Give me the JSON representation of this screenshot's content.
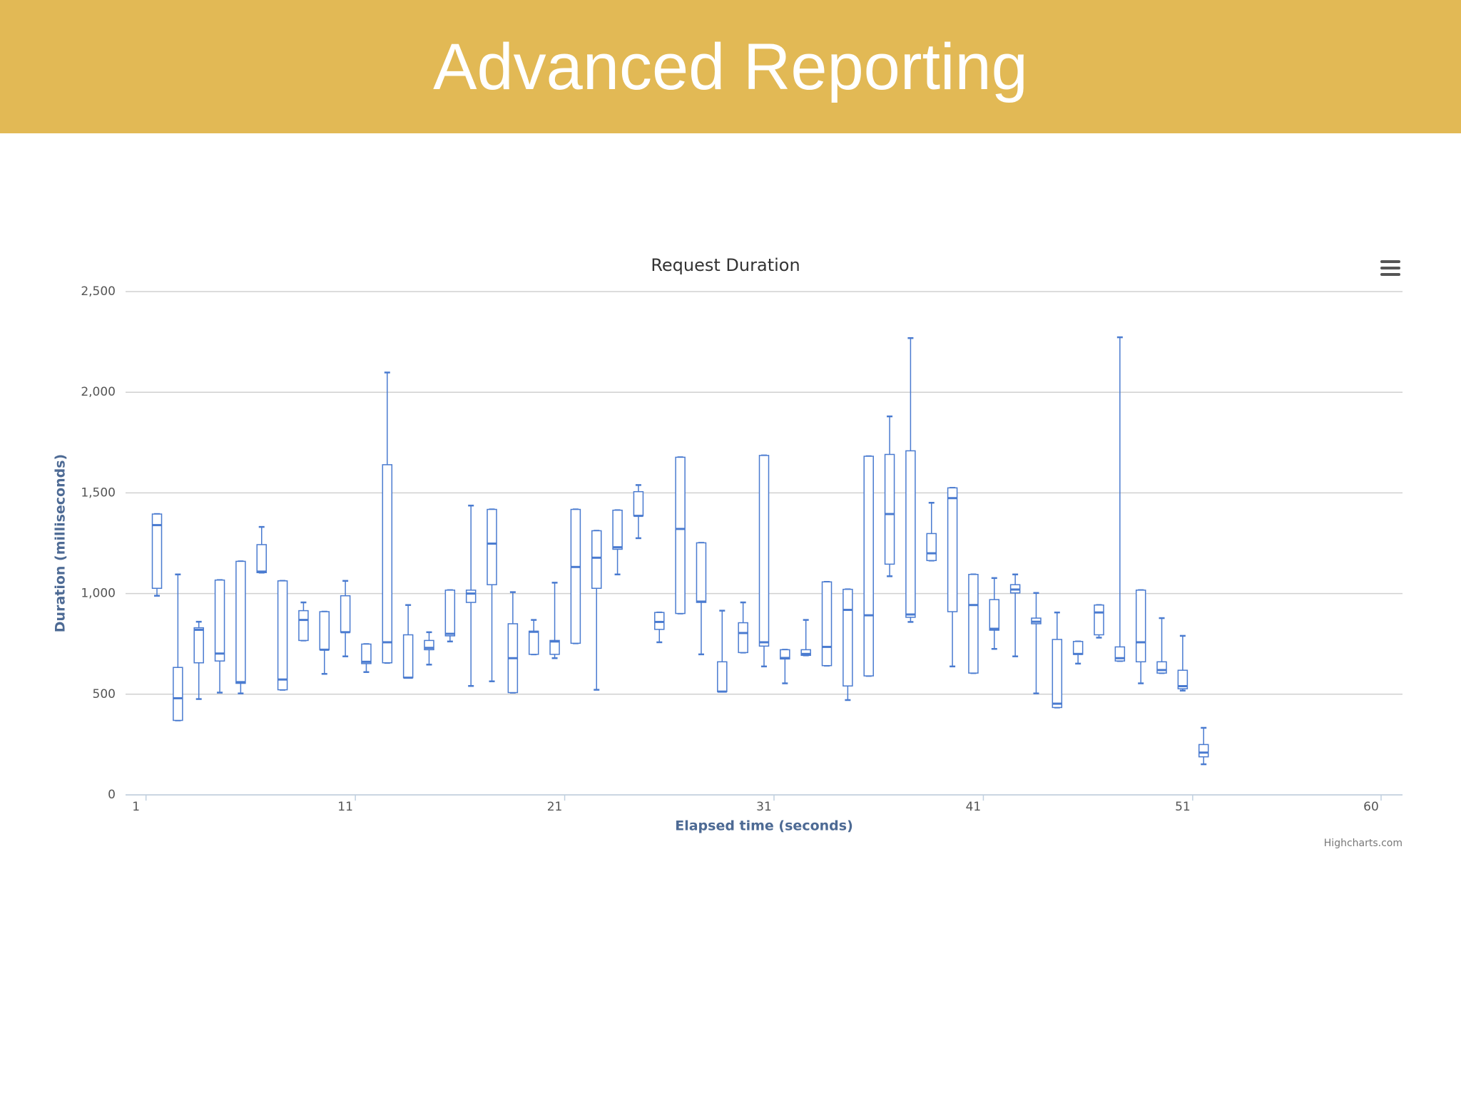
{
  "header": {
    "title": "Advanced Reporting"
  },
  "chart_data": {
    "type": "boxplot",
    "title": "Request Duration",
    "x_label": "Elapsed time (seconds)",
    "y_label": "Duration (milliseconds)",
    "credits": "Highcharts.com",
    "color": "#4a7bd0",
    "grid": true,
    "xlim": [
      0.5,
      61.5
    ],
    "xticks": [
      1,
      11,
      21,
      31,
      41,
      51,
      60
    ],
    "ylim": [
      0,
      2500
    ],
    "yticks": [
      0,
      500,
      {
        "value": 1000,
        "label": "1,000"
      },
      {
        "value": 1500,
        "label": "1,500"
      },
      {
        "value": 2000,
        "label": "2,000"
      },
      {
        "value": 2500,
        "label": "2,500"
      }
    ],
    "x": [
      2,
      3,
      4,
      5,
      6,
      7,
      8,
      9,
      10,
      11,
      12,
      13,
      14,
      15,
      16,
      17,
      18,
      19,
      20,
      21,
      22,
      23,
      24,
      25,
      26,
      27,
      28,
      29,
      30,
      31,
      32,
      33,
      34,
      35,
      36,
      37,
      38,
      39,
      40,
      41,
      42,
      43,
      44,
      45,
      46,
      47,
      48,
      49,
      50,
      51,
      52
    ],
    "low": [
      989,
      370,
      476,
      508,
      504,
      1104,
      522,
      767,
      601,
      688,
      610,
      656,
      582,
      647,
      762,
      541,
      564,
      508,
      698,
      679,
      753,
      522,
      1095,
      1275,
      758,
      901,
      698,
      513,
      707,
      638,
      554,
      693,
      642,
      471,
      591,
      1086,
      859,
      1164,
      638,
      605,
      725,
      688,
      504,
      434,
      652,
      781,
      665,
      554,
      605,
      518,
      152
    ],
    "q1": [
      1026,
      370,
      656,
      665,
      554,
      1104,
      522,
      767,
      721,
      808,
      652,
      656,
      582,
      721,
      790,
      956,
      1044,
      508,
      698,
      698,
      753,
      1026,
      1220,
      1386,
      822,
      901,
      956,
      513,
      707,
      739,
      675,
      693,
      642,
      541,
      591,
      1146,
      882,
      1164,
      910,
      605,
      818,
      1003,
      850,
      434,
      698,
      795,
      665,
      661,
      605,
      527,
      189
    ],
    "median": [
      1340,
      480,
      820,
      702,
      560,
      1109,
      573,
      869,
      721,
      808,
      661,
      758,
      582,
      730,
      800,
      1000,
      1248,
      679,
      810,
      762,
      1132,
      1178,
      1230,
      1386,
      859,
      1321,
      960,
      513,
      804,
      758,
      680,
      700,
      735,
      919,
      892,
      1395,
      896,
      1200,
      1474,
      943,
      825,
      1020,
      860,
      453,
      700,
      906,
      679,
      758,
      620,
      540,
      210
    ],
    "q3": [
      1395,
      633,
      830,
      1067,
      1160,
      1243,
      1063,
      915,
      910,
      989,
      749,
      1640,
      795,
      767,
      1017,
      1017,
      1418,
      850,
      813,
      767,
      1418,
      1312,
      1414,
      1506,
      906,
      1677,
      1252,
      661,
      855,
      1686,
      721,
      721,
      1058,
      1021,
      1682,
      1691,
      1709,
      1298,
      1525,
      1095,
      970,
      1044,
      878,
      772,
      762,
      943,
      735,
      1017,
      661,
      619,
      250
    ],
    "high": [
      1395,
      1095,
      860,
      1067,
      1160,
      1331,
      1063,
      956,
      910,
      1063,
      749,
      2098,
      943,
      808,
      1017,
      1437,
      1418,
      1007,
      869,
      1054,
      1418,
      1312,
      1414,
      1539,
      906,
      1677,
      1252,
      915,
      956,
      1686,
      721,
      869,
      1058,
      1021,
      1682,
      1880,
      2269,
      1451,
      1525,
      1095,
      1077,
      1095,
      1003,
      906,
      762,
      943,
      2273,
      1017,
      878,
      790,
      333
    ]
  }
}
